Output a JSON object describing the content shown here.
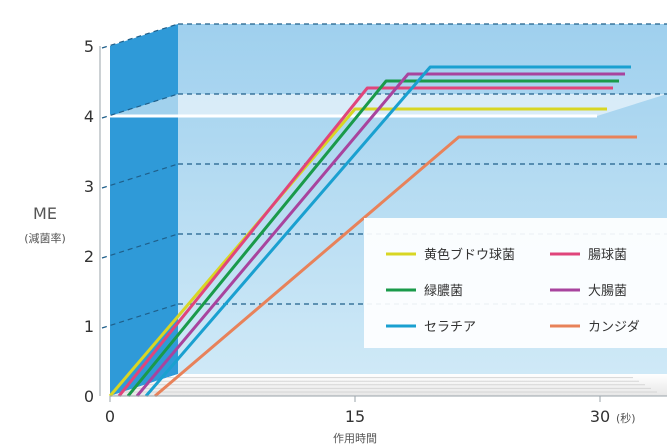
{
  "chart_data": {
    "type": "line",
    "ylabel": "ME",
    "ylabel_sub": "(減菌率)",
    "xlabel": "作用時間",
    "x_ticks": [
      "0",
      "15",
      "30"
    ],
    "x_unit": "(秒)",
    "y_ticks": [
      "0",
      "1",
      "2",
      "3",
      "4",
      "5"
    ],
    "xlim": [
      0,
      30
    ],
    "ylim": [
      0,
      5
    ],
    "grid": true,
    "legend_position": "lower-right",
    "threshold_y": 4,
    "series": [
      {
        "name": "黄色ブドウ球菌",
        "color": "#d8d624",
        "x": [
          0,
          15,
          30
        ],
        "y": [
          0,
          4.1,
          4.1
        ]
      },
      {
        "name": "腸球菌",
        "color": "#e0457b",
        "x": [
          0,
          15.2,
          30
        ],
        "y": [
          0,
          4.4,
          4.4
        ]
      },
      {
        "name": "緑膿菌",
        "color": "#1a9a4a",
        "x": [
          0,
          15.8,
          30
        ],
        "y": [
          0,
          4.5,
          4.5
        ]
      },
      {
        "name": "大腸菌",
        "color": "#a8449e",
        "x": [
          0,
          16.6,
          30
        ],
        "y": [
          0,
          4.6,
          4.6
        ]
      },
      {
        "name": "セラチア",
        "color": "#1aa0d0",
        "x": [
          0,
          17.4,
          30
        ],
        "y": [
          0,
          4.7,
          4.7
        ]
      },
      {
        "name": "カンジダ",
        "color": "#e8825a",
        "x": [
          0,
          18.6,
          30
        ],
        "y": [
          0,
          3.7,
          3.7
        ]
      }
    ]
  }
}
